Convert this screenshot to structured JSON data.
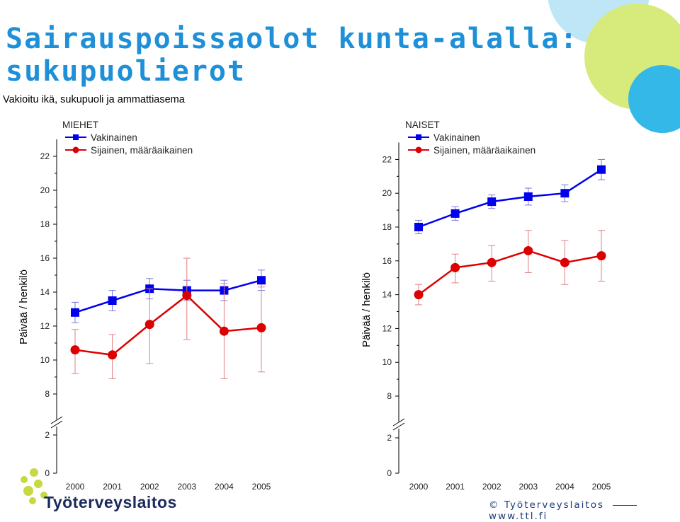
{
  "title_line1": "Sairauspoissaolot kunta-alalla:",
  "title_line2": "sukupuolierot",
  "subtitle": "Vakioitu ikä, sukupuoli ja ammattiasema",
  "footer": {
    "copyright": "©",
    "org": "Työterveyslaitos",
    "url": "www.ttl.fi"
  },
  "brand": {
    "name": "Työterveyslaitos"
  },
  "colors": {
    "blue": "#0000ee",
    "red": "#dd0000",
    "blue_err": "#7777dd",
    "red_err": "#e08080",
    "title": "#1e90d8"
  },
  "chart_data": [
    {
      "type": "line",
      "title": "MIEHET",
      "ylabel": "Päivää / henkilö",
      "xlabel": "",
      "ylim": [
        0,
        23
      ],
      "axis_break": [
        2.5,
        7
      ],
      "yticks": [
        "0",
        "2",
        "8",
        "10",
        "12",
        "14",
        "16",
        "18",
        "20",
        "22"
      ],
      "categories": [
        "2000",
        "2001",
        "2002",
        "2003",
        "2004",
        "2005"
      ],
      "legend": "top-left",
      "series": [
        {
          "name": "Vakinainen",
          "marker": "square",
          "color": "#0000ee",
          "values": [
            12.8,
            13.5,
            14.2,
            14.1,
            14.1,
            14.7
          ],
          "err_low": [
            12.2,
            12.9,
            13.6,
            13.5,
            13.5,
            14.1
          ],
          "err_high": [
            13.4,
            14.1,
            14.8,
            14.7,
            14.7,
            15.3
          ]
        },
        {
          "name": "Sijainen, määräaikainen",
          "marker": "circle",
          "color": "#dd0000",
          "values": [
            10.6,
            10.3,
            12.1,
            13.8,
            11.7,
            11.9
          ],
          "err_low": [
            9.2,
            8.9,
            9.8,
            11.2,
            8.9,
            9.3
          ],
          "err_high": [
            11.8,
            11.5,
            14.2,
            16.0,
            14.5,
            14.3
          ]
        }
      ]
    },
    {
      "type": "line",
      "title": "NAISET",
      "ylabel": "Päivää / henkilö",
      "xlabel": "",
      "ylim": [
        0,
        23
      ],
      "axis_break": [
        2.5,
        7
      ],
      "yticks": [
        "0",
        "2",
        "8",
        "10",
        "12",
        "14",
        "16",
        "18",
        "20",
        "22"
      ],
      "categories": [
        "2000",
        "2001",
        "2002",
        "2003",
        "2004",
        "2005"
      ],
      "legend": "top-left",
      "series": [
        {
          "name": "Vakinainen",
          "marker": "square",
          "color": "#0000ee",
          "values": [
            18.0,
            18.8,
            19.5,
            19.8,
            20.0,
            21.4
          ],
          "err_low": [
            17.6,
            18.4,
            19.1,
            19.3,
            19.5,
            20.8
          ],
          "err_high": [
            18.4,
            19.2,
            19.9,
            20.3,
            20.5,
            22.0
          ]
        },
        {
          "name": "Sijainen, määräaikainen",
          "marker": "circle",
          "color": "#dd0000",
          "values": [
            14.0,
            15.6,
            15.9,
            16.6,
            15.9,
            16.3
          ],
          "err_low": [
            13.4,
            14.7,
            14.8,
            15.3,
            14.6,
            14.8
          ],
          "err_high": [
            14.6,
            16.4,
            16.9,
            17.8,
            17.2,
            17.8
          ]
        }
      ]
    }
  ]
}
